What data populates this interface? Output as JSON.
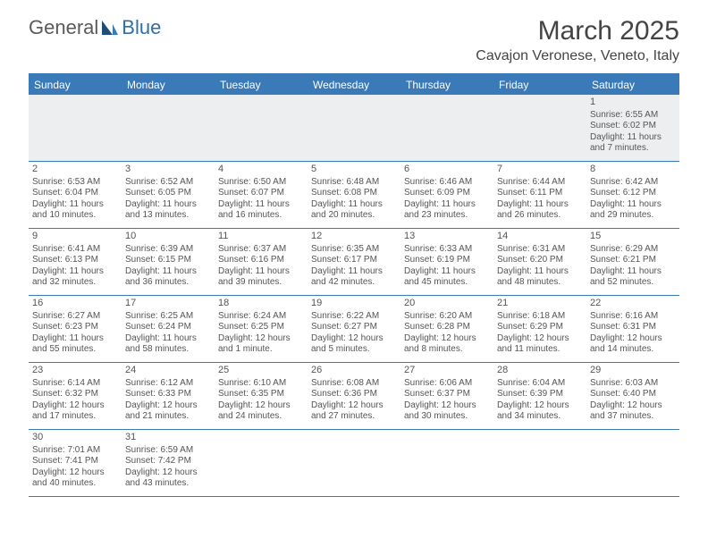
{
  "header": {
    "logo_general": "General",
    "logo_blue": "Blue",
    "month_title": "March 2025",
    "location": "Cavajon Veronese, Veneto, Italy"
  },
  "colors": {
    "brand_blue": "#3a7ab8",
    "text": "#444444",
    "bg": "#ffffff",
    "firstweek_bg": "#eceef0"
  },
  "weekdays": [
    "Sunday",
    "Monday",
    "Tuesday",
    "Wednesday",
    "Thursday",
    "Friday",
    "Saturday"
  ],
  "weeks": [
    [
      {
        "day": ""
      },
      {
        "day": ""
      },
      {
        "day": ""
      },
      {
        "day": ""
      },
      {
        "day": ""
      },
      {
        "day": ""
      },
      {
        "day": "1",
        "sunrise": "Sunrise: 6:55 AM",
        "sunset": "Sunset: 6:02 PM",
        "dl1": "Daylight: 11 hours",
        "dl2": "and 7 minutes."
      }
    ],
    [
      {
        "day": "2",
        "sunrise": "Sunrise: 6:53 AM",
        "sunset": "Sunset: 6:04 PM",
        "dl1": "Daylight: 11 hours",
        "dl2": "and 10 minutes."
      },
      {
        "day": "3",
        "sunrise": "Sunrise: 6:52 AM",
        "sunset": "Sunset: 6:05 PM",
        "dl1": "Daylight: 11 hours",
        "dl2": "and 13 minutes."
      },
      {
        "day": "4",
        "sunrise": "Sunrise: 6:50 AM",
        "sunset": "Sunset: 6:07 PM",
        "dl1": "Daylight: 11 hours",
        "dl2": "and 16 minutes."
      },
      {
        "day": "5",
        "sunrise": "Sunrise: 6:48 AM",
        "sunset": "Sunset: 6:08 PM",
        "dl1": "Daylight: 11 hours",
        "dl2": "and 20 minutes."
      },
      {
        "day": "6",
        "sunrise": "Sunrise: 6:46 AM",
        "sunset": "Sunset: 6:09 PM",
        "dl1": "Daylight: 11 hours",
        "dl2": "and 23 minutes."
      },
      {
        "day": "7",
        "sunrise": "Sunrise: 6:44 AM",
        "sunset": "Sunset: 6:11 PM",
        "dl1": "Daylight: 11 hours",
        "dl2": "and 26 minutes."
      },
      {
        "day": "8",
        "sunrise": "Sunrise: 6:42 AM",
        "sunset": "Sunset: 6:12 PM",
        "dl1": "Daylight: 11 hours",
        "dl2": "and 29 minutes."
      }
    ],
    [
      {
        "day": "9",
        "sunrise": "Sunrise: 6:41 AM",
        "sunset": "Sunset: 6:13 PM",
        "dl1": "Daylight: 11 hours",
        "dl2": "and 32 minutes."
      },
      {
        "day": "10",
        "sunrise": "Sunrise: 6:39 AM",
        "sunset": "Sunset: 6:15 PM",
        "dl1": "Daylight: 11 hours",
        "dl2": "and 36 minutes."
      },
      {
        "day": "11",
        "sunrise": "Sunrise: 6:37 AM",
        "sunset": "Sunset: 6:16 PM",
        "dl1": "Daylight: 11 hours",
        "dl2": "and 39 minutes."
      },
      {
        "day": "12",
        "sunrise": "Sunrise: 6:35 AM",
        "sunset": "Sunset: 6:17 PM",
        "dl1": "Daylight: 11 hours",
        "dl2": "and 42 minutes."
      },
      {
        "day": "13",
        "sunrise": "Sunrise: 6:33 AM",
        "sunset": "Sunset: 6:19 PM",
        "dl1": "Daylight: 11 hours",
        "dl2": "and 45 minutes."
      },
      {
        "day": "14",
        "sunrise": "Sunrise: 6:31 AM",
        "sunset": "Sunset: 6:20 PM",
        "dl1": "Daylight: 11 hours",
        "dl2": "and 48 minutes."
      },
      {
        "day": "15",
        "sunrise": "Sunrise: 6:29 AM",
        "sunset": "Sunset: 6:21 PM",
        "dl1": "Daylight: 11 hours",
        "dl2": "and 52 minutes."
      }
    ],
    [
      {
        "day": "16",
        "sunrise": "Sunrise: 6:27 AM",
        "sunset": "Sunset: 6:23 PM",
        "dl1": "Daylight: 11 hours",
        "dl2": "and 55 minutes."
      },
      {
        "day": "17",
        "sunrise": "Sunrise: 6:25 AM",
        "sunset": "Sunset: 6:24 PM",
        "dl1": "Daylight: 11 hours",
        "dl2": "and 58 minutes."
      },
      {
        "day": "18",
        "sunrise": "Sunrise: 6:24 AM",
        "sunset": "Sunset: 6:25 PM",
        "dl1": "Daylight: 12 hours",
        "dl2": "and 1 minute."
      },
      {
        "day": "19",
        "sunrise": "Sunrise: 6:22 AM",
        "sunset": "Sunset: 6:27 PM",
        "dl1": "Daylight: 12 hours",
        "dl2": "and 5 minutes."
      },
      {
        "day": "20",
        "sunrise": "Sunrise: 6:20 AM",
        "sunset": "Sunset: 6:28 PM",
        "dl1": "Daylight: 12 hours",
        "dl2": "and 8 minutes."
      },
      {
        "day": "21",
        "sunrise": "Sunrise: 6:18 AM",
        "sunset": "Sunset: 6:29 PM",
        "dl1": "Daylight: 12 hours",
        "dl2": "and 11 minutes."
      },
      {
        "day": "22",
        "sunrise": "Sunrise: 6:16 AM",
        "sunset": "Sunset: 6:31 PM",
        "dl1": "Daylight: 12 hours",
        "dl2": "and 14 minutes."
      }
    ],
    [
      {
        "day": "23",
        "sunrise": "Sunrise: 6:14 AM",
        "sunset": "Sunset: 6:32 PM",
        "dl1": "Daylight: 12 hours",
        "dl2": "and 17 minutes."
      },
      {
        "day": "24",
        "sunrise": "Sunrise: 6:12 AM",
        "sunset": "Sunset: 6:33 PM",
        "dl1": "Daylight: 12 hours",
        "dl2": "and 21 minutes."
      },
      {
        "day": "25",
        "sunrise": "Sunrise: 6:10 AM",
        "sunset": "Sunset: 6:35 PM",
        "dl1": "Daylight: 12 hours",
        "dl2": "and 24 minutes."
      },
      {
        "day": "26",
        "sunrise": "Sunrise: 6:08 AM",
        "sunset": "Sunset: 6:36 PM",
        "dl1": "Daylight: 12 hours",
        "dl2": "and 27 minutes."
      },
      {
        "day": "27",
        "sunrise": "Sunrise: 6:06 AM",
        "sunset": "Sunset: 6:37 PM",
        "dl1": "Daylight: 12 hours",
        "dl2": "and 30 minutes."
      },
      {
        "day": "28",
        "sunrise": "Sunrise: 6:04 AM",
        "sunset": "Sunset: 6:39 PM",
        "dl1": "Daylight: 12 hours",
        "dl2": "and 34 minutes."
      },
      {
        "day": "29",
        "sunrise": "Sunrise: 6:03 AM",
        "sunset": "Sunset: 6:40 PM",
        "dl1": "Daylight: 12 hours",
        "dl2": "and 37 minutes."
      }
    ],
    [
      {
        "day": "30",
        "sunrise": "Sunrise: 7:01 AM",
        "sunset": "Sunset: 7:41 PM",
        "dl1": "Daylight: 12 hours",
        "dl2": "and 40 minutes."
      },
      {
        "day": "31",
        "sunrise": "Sunrise: 6:59 AM",
        "sunset": "Sunset: 7:42 PM",
        "dl1": "Daylight: 12 hours",
        "dl2": "and 43 minutes."
      },
      {
        "day": ""
      },
      {
        "day": ""
      },
      {
        "day": ""
      },
      {
        "day": ""
      },
      {
        "day": ""
      }
    ]
  ]
}
